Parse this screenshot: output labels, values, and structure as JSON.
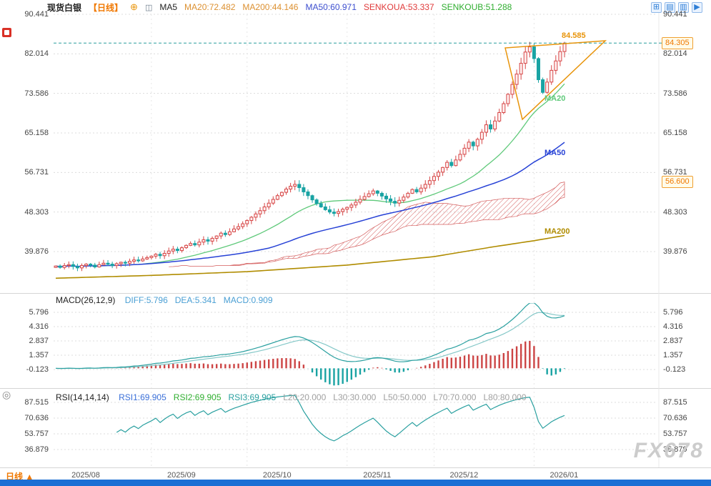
{
  "ui": {
    "header": {
      "symbol": "现货白银",
      "period": "【日线】",
      "ma5": "MA5",
      "indicators": [
        {
          "label": "MA20:72.482",
          "color": "#dc9030"
        },
        {
          "label": "MA200:44.146",
          "color": "#dc9030"
        },
        {
          "label": "MA50:60.971",
          "color": "#3c4ecf"
        },
        {
          "label": "SENKOUA:53.337",
          "color": "#e03a3a"
        },
        {
          "label": "SENKOUB:51.288",
          "color": "#2fae2f"
        }
      ],
      "toolbar_icons": [
        {
          "name": "split-view-icon",
          "glyph": "⊞"
        },
        {
          "name": "grid-view-icon",
          "glyph": "▤"
        },
        {
          "name": "panel-layout-icon",
          "glyph": "▥"
        },
        {
          "name": "play-forward-icon",
          "glyph": "▶"
        }
      ]
    },
    "macd_header": {
      "title": "MACD(26,12,9)",
      "items": [
        {
          "label": "DIFF:5.796",
          "color": "#4a9fd4"
        },
        {
          "label": "DEA:5.341",
          "color": "#4a9fd4"
        },
        {
          "label": "MACD:0.909",
          "color": "#4a9fd4"
        }
      ]
    },
    "rsi_header": {
      "title": "RSI(14,14,14)",
      "items": [
        {
          "label": "RSI1:69.905",
          "color": "#3a6fd8"
        },
        {
          "label": "RSI2:69.905",
          "color": "#2fae2f"
        },
        {
          "label": "RSI3:69.905",
          "color": "#2aa0a0"
        },
        {
          "label": "L20:20.000",
          "color": "#a0a0a0"
        },
        {
          "label": "L30:30.000",
          "color": "#a0a0a0"
        },
        {
          "label": "L50:50.000",
          "color": "#a0a0a0"
        },
        {
          "label": "L70:70.000",
          "color": "#a0a0a0"
        },
        {
          "label": "L80:80.000",
          "color": "#a0a0a0"
        }
      ]
    },
    "price_axis_labels": [
      "90.441",
      "82.014",
      "73.586",
      "65.158",
      "56.731",
      "48.303",
      "39.876"
    ],
    "macd_axis_labels": [
      "5.796",
      "4.316",
      "2.837",
      "1.357",
      "-0.123"
    ],
    "rsi_axis_labels": [
      "87.515",
      "70.636",
      "53.757",
      "36.879"
    ],
    "x_labels": [
      "2025/08",
      "2025/09",
      "2025/10",
      "2025/11",
      "2025/12",
      "2026/01"
    ],
    "boxes": {
      "current_price": "84.305",
      "alert_price": "56.600"
    },
    "annotation_label": "84.585",
    "footer_tab": "日线",
    "footer_arrow": "▲",
    "watermark": "FX678"
  },
  "chart_data": {
    "type": "candlestick",
    "symbol": "现货白银",
    "interval": "日线",
    "x_months": [
      "2025/08",
      "2025/09",
      "2025/10",
      "2025/11",
      "2025/12",
      "2026/01"
    ],
    "month_start_indices": [
      0,
      22,
      44,
      67,
      87,
      110
    ],
    "closes": [
      36.8,
      36.5,
      36.9,
      37.1,
      36.7,
      36.4,
      36.9,
      37.2,
      37.0,
      36.6,
      37.1,
      37.4,
      37.2,
      36.9,
      37.3,
      37.6,
      37.4,
      37.8,
      38.1,
      37.9,
      38.3,
      38.6,
      38.9,
      39.3,
      39.0,
      39.5,
      40.0,
      40.4,
      40.1,
      40.7,
      41.2,
      41.6,
      41.3,
      41.9,
      42.4,
      42.1,
      42.7,
      43.2,
      43.8,
      43.5,
      44.1,
      44.7,
      45.2,
      45.8,
      46.5,
      47.2,
      47.9,
      48.6,
      49.4,
      50.2,
      51.0,
      51.8,
      52.5,
      53.2,
      53.8,
      54.2,
      53.5,
      52.6,
      51.8,
      50.9,
      50.1,
      49.4,
      48.8,
      48.3,
      48.0,
      48.4,
      48.9,
      49.3,
      49.8,
      50.4,
      51.0,
      51.6,
      52.2,
      52.8,
      52.3,
      51.7,
      51.1,
      50.6,
      50.2,
      50.8,
      51.5,
      52.3,
      53.1,
      52.6,
      53.4,
      54.2,
      55.0,
      55.9,
      56.8,
      57.8,
      58.9,
      58.2,
      59.4,
      60.6,
      61.9,
      63.2,
      62.4,
      63.8,
      65.3,
      66.9,
      66.0,
      67.7,
      69.5,
      71.4,
      73.4,
      75.5,
      77.7,
      80.0,
      82.4,
      83.5,
      81.0,
      76.5,
      73.8,
      76.0,
      78.5,
      80.5,
      82.5,
      84.305
    ],
    "last_price": 84.305,
    "high_annotation": 84.585,
    "alert_level": 56.6,
    "price_ticks": [
      90.441,
      82.014,
      73.586,
      65.158,
      56.731,
      48.303,
      39.876
    ],
    "indicator_values": {
      "MA20": 72.482,
      "MA200": 44.146,
      "MA50": 60.971,
      "SENKOUA": 53.337,
      "SENKOUB": 51.288
    },
    "ma200_anchors": [
      [
        0,
        34.2
      ],
      [
        22,
        34.8
      ],
      [
        44,
        35.6
      ],
      [
        67,
        37.0
      ],
      [
        87,
        38.8
      ],
      [
        100,
        40.8
      ],
      [
        110,
        42.2
      ],
      [
        117,
        43.3
      ]
    ],
    "ma_line_labels": [
      {
        "text": "MA20",
        "color": "#5fc97a",
        "value": 72.482
      },
      {
        "text": "MA50",
        "color": "#2742d6",
        "value": 60.971
      },
      {
        "text": "MA200",
        "color": "#b08c00",
        "value": 44.146
      }
    ],
    "annotation_triangle": [
      [
        707,
        67
      ],
      [
        731,
        167
      ],
      [
        847,
        57
      ]
    ],
    "macd": {
      "DIFF": 5.796,
      "DEA": 5.341,
      "MACD": 0.909,
      "ticks": [
        5.796,
        4.316,
        2.837,
        1.357,
        -0.123
      ]
    },
    "rsi": {
      "RSI1": 69.905,
      "RSI2": 69.905,
      "RSI3": 69.905,
      "levels": [
        20,
        30,
        50,
        70,
        80
      ],
      "ticks": [
        87.515,
        70.636,
        53.757,
        36.879
      ]
    },
    "colors": {
      "up": "#d64545",
      "down": "#19a3a3",
      "ma20": "#5fc97a",
      "ma50": "#2742d6",
      "ma200": "#b08c00",
      "cloud": "#cf4a4a",
      "current_line": "#2a9d9e",
      "annotation": "#e8940a",
      "macd_line": "#2aa0a0",
      "signal_line": "#85c8c8",
      "hist_up": "#cc4444",
      "hist_down": "#19a3a3",
      "rsi_line": "#2aa0a0",
      "grid": "#dcdcdc"
    }
  }
}
